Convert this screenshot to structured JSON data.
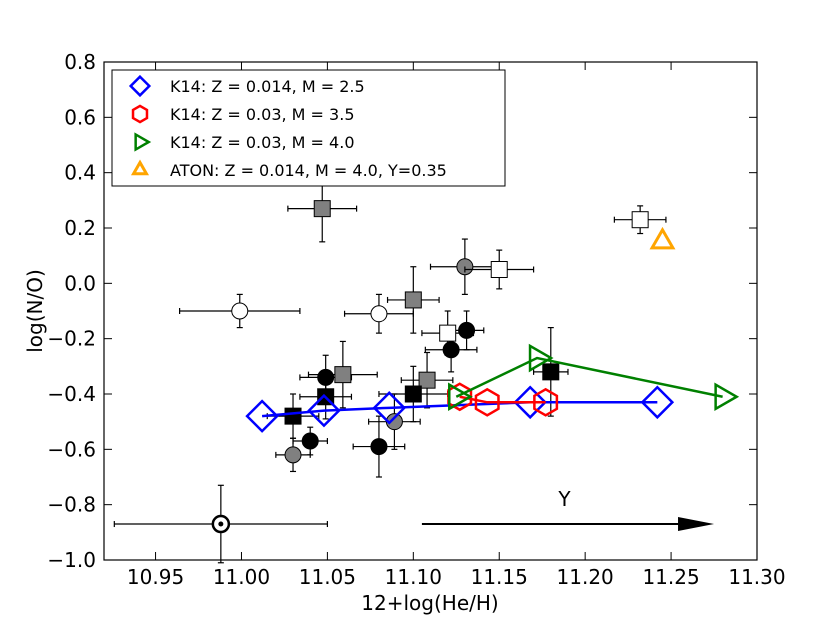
{
  "chart_data": {
    "type": "scatter",
    "title": "",
    "xlabel": "12+log(He/H)",
    "ylabel": "log(N/O)",
    "xlim": [
      10.92,
      11.3
    ],
    "ylim": [
      -1.0,
      0.8
    ],
    "xticks": [
      "10.95",
      "11.00",
      "11.05",
      "11.10",
      "11.15",
      "11.20",
      "11.25",
      "11.30"
    ],
    "yticks": [
      "0.8",
      "0.6",
      "0.4",
      "0.2",
      "0.0",
      "−0.2",
      "−0.4",
      "−0.6",
      "−0.8",
      "−1.0"
    ],
    "grid": false,
    "legend_placement": "top-left",
    "legend": [
      {
        "label": "K14: Z = 0.014, M = 2.5",
        "marker": "diamond",
        "color": "#0000ff"
      },
      {
        "label": "K14: Z = 0.03, M = 3.5",
        "marker": "hexagon",
        "color": "#ff0000"
      },
      {
        "label": "K14: Z = 0.03, M = 4.0",
        "marker": "triangle-right",
        "color": "#008000"
      },
      {
        "label": "ATON: Z = 0.014, M = 4.0, Y=0.35",
        "marker": "triangle-up",
        "color": "#ffa500"
      }
    ],
    "models": [
      {
        "name": "K14: Z = 0.014, M = 2.5",
        "marker": "diamond",
        "color": "#0000ff",
        "line": true,
        "x": [
          11.012,
          11.048,
          11.086,
          11.168,
          11.242
        ],
        "y": [
          -0.48,
          -0.46,
          -0.45,
          -0.43,
          -0.43
        ]
      },
      {
        "name": "K14: Z = 0.03, M = 3.5",
        "marker": "hexagon",
        "color": "#ff0000",
        "line": true,
        "x": [
          11.127,
          11.143,
          11.177
        ],
        "y": [
          -0.41,
          -0.43,
          -0.43
        ]
      },
      {
        "name": "K14: Z = 0.03, M = 4.0",
        "marker": "triangle-right",
        "color": "#008000",
        "line": true,
        "x": [
          11.125,
          11.172,
          11.28
        ],
        "y": [
          -0.41,
          -0.27,
          -0.41
        ]
      },
      {
        "name": "ATON: Z = 0.014, M = 4.0, Y=0.35",
        "marker": "triangle-up",
        "color": "#ffa500",
        "line": false,
        "x": [
          11.245
        ],
        "y": [
          0.15
        ]
      }
    ],
    "observations": [
      {
        "x": 10.999,
        "y": -0.1,
        "xerr": 0.035,
        "yerr": 0.06,
        "marker": "circle",
        "fill": "#ffffff"
      },
      {
        "x": 11.08,
        "y": -0.11,
        "xerr": 0.02,
        "yerr": 0.07,
        "marker": "circle",
        "fill": "#ffffff"
      },
      {
        "x": 11.13,
        "y": 0.06,
        "xerr": 0.02,
        "yerr": 0.1,
        "marker": "circle",
        "fill": "#808080"
      },
      {
        "x": 11.089,
        "y": -0.5,
        "xerr": 0.015,
        "yerr": 0.1,
        "marker": "circle",
        "fill": "#808080"
      },
      {
        "x": 11.03,
        "y": -0.62,
        "xerr": 0.01,
        "yerr": 0.06,
        "marker": "circle",
        "fill": "#808080"
      },
      {
        "x": 11.049,
        "y": -0.34,
        "xerr": 0.015,
        "yerr": 0.08,
        "marker": "circle",
        "fill": "#000000"
      },
      {
        "x": 11.04,
        "y": -0.57,
        "xerr": 0.01,
        "yerr": 0.05,
        "marker": "circle",
        "fill": "#000000"
      },
      {
        "x": 11.08,
        "y": -0.59,
        "xerr": 0.015,
        "yerr": 0.11,
        "marker": "circle",
        "fill": "#000000"
      },
      {
        "x": 11.122,
        "y": -0.24,
        "xerr": 0.015,
        "yerr": 0.08,
        "marker": "circle",
        "fill": "#000000"
      },
      {
        "x": 11.131,
        "y": -0.17,
        "xerr": 0.01,
        "yerr": 0.07,
        "marker": "circle",
        "fill": "#000000"
      },
      {
        "x": 10.988,
        "y": -0.87,
        "xerr": 0.062,
        "yerr": 0.14,
        "marker": "circle-dot",
        "fill": "#ffffff"
      },
      {
        "x": 11.047,
        "y": 0.27,
        "xerr": 0.02,
        "yerr": 0.12,
        "marker": "square",
        "fill": "#808080"
      },
      {
        "x": 11.1,
        "y": -0.06,
        "xerr": 0.015,
        "yerr": 0.12,
        "marker": "square",
        "fill": "#808080"
      },
      {
        "x": 11.059,
        "y": -0.33,
        "xerr": 0.02,
        "yerr": 0.12,
        "marker": "square",
        "fill": "#808080"
      },
      {
        "x": 11.108,
        "y": -0.35,
        "xerr": 0.015,
        "yerr": 0.1,
        "marker": "square",
        "fill": "#808080"
      },
      {
        "x": 11.15,
        "y": 0.05,
        "xerr": 0.02,
        "yerr": 0.07,
        "marker": "square",
        "fill": "#ffffff"
      },
      {
        "x": 11.232,
        "y": 0.23,
        "xerr": 0.015,
        "yerr": 0.05,
        "marker": "square",
        "fill": "#ffffff"
      },
      {
        "x": 11.12,
        "y": -0.18,
        "xerr": 0.015,
        "yerr": 0.08,
        "marker": "square",
        "fill": "#ffffff"
      },
      {
        "x": 11.03,
        "y": -0.48,
        "xerr": 0.015,
        "yerr": 0.08,
        "marker": "square",
        "fill": "#000000"
      },
      {
        "x": 11.049,
        "y": -0.41,
        "xerr": 0.015,
        "yerr": 0.08,
        "marker": "square",
        "fill": "#000000"
      },
      {
        "x": 11.1,
        "y": -0.4,
        "xerr": 0.02,
        "yerr": 0.1,
        "marker": "square",
        "fill": "#000000"
      },
      {
        "x": 11.18,
        "y": -0.32,
        "xerr": 0.01,
        "yerr": 0.16,
        "marker": "square",
        "fill": "#000000"
      }
    ],
    "annotations": [
      {
        "text": "Y",
        "type": "arrow",
        "x_from": 11.105,
        "x_to": 11.275,
        "y": -0.87,
        "text_x": 11.188,
        "text_y": -0.78
      }
    ]
  }
}
